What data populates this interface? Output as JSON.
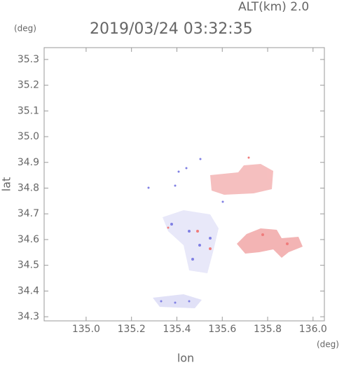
{
  "chart_data": {
    "type": "map",
    "header": "ALT(km) 2.0",
    "title": "2019/03/24 03:32:35",
    "y_unit": "(deg)",
    "x_unit": "(deg)",
    "ylabel": "lat",
    "xlabel": "lon",
    "xlim": [
      134.815,
      136.05
    ],
    "ylim": [
      34.284,
      35.346
    ],
    "xticks": [
      {
        "value": 135.0,
        "label": "135.0"
      },
      {
        "value": 135.2,
        "label": "135.2"
      },
      {
        "value": 135.4,
        "label": "135.4"
      },
      {
        "value": 135.6,
        "label": "135.6"
      },
      {
        "value": 135.8,
        "label": "135.8"
      },
      {
        "value": 136.0,
        "label": "136.0"
      }
    ],
    "yticks": [
      {
        "value": 34.3,
        "label": "34.3"
      },
      {
        "value": 34.4,
        "label": "34.4"
      },
      {
        "value": 34.5,
        "label": "34.5"
      },
      {
        "value": 34.6,
        "label": "34.6"
      },
      {
        "value": 34.7,
        "label": "34.7"
      },
      {
        "value": 34.8,
        "label": "34.8"
      },
      {
        "value": 34.9,
        "label": "34.9"
      },
      {
        "value": 35.0,
        "label": "35.0"
      },
      {
        "value": 35.1,
        "label": "35.1"
      },
      {
        "value": 35.2,
        "label": "35.2"
      },
      {
        "value": 35.3,
        "label": "35.3"
      }
    ]
  }
}
